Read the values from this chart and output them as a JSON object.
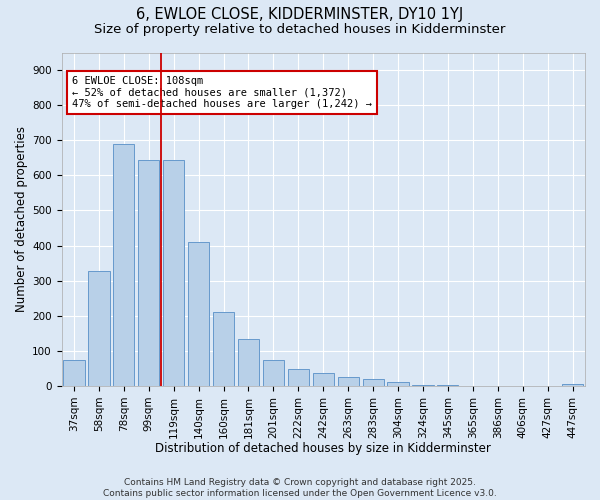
{
  "title": "6, EWLOE CLOSE, KIDDERMINSTER, DY10 1YJ",
  "subtitle": "Size of property relative to detached houses in Kidderminster",
  "xlabel": "Distribution of detached houses by size in Kidderminster",
  "ylabel": "Number of detached properties",
  "categories": [
    "37sqm",
    "58sqm",
    "78sqm",
    "99sqm",
    "119sqm",
    "140sqm",
    "160sqm",
    "181sqm",
    "201sqm",
    "222sqm",
    "242sqm",
    "263sqm",
    "283sqm",
    "304sqm",
    "324sqm",
    "345sqm",
    "365sqm",
    "386sqm",
    "406sqm",
    "427sqm",
    "447sqm"
  ],
  "values": [
    75,
    327,
    690,
    645,
    645,
    410,
    210,
    135,
    73,
    48,
    37,
    25,
    20,
    10,
    4,
    4,
    0,
    0,
    0,
    0,
    7
  ],
  "bar_color": "#b8d0e8",
  "bar_edge_color": "#6699cc",
  "vline_x": 3.5,
  "vline_color": "#cc0000",
  "annotation_text": "6 EWLOE CLOSE: 108sqm\n← 52% of detached houses are smaller (1,372)\n47% of semi-detached houses are larger (1,242) →",
  "annotation_box_color": "#ffffff",
  "annotation_box_edge": "#cc0000",
  "bg_color": "#dce8f5",
  "plot_bg_color": "#dce8f5",
  "ylim": [
    0,
    950
  ],
  "yticks": [
    0,
    100,
    200,
    300,
    400,
    500,
    600,
    700,
    800,
    900
  ],
  "footer": "Contains HM Land Registry data © Crown copyright and database right 2025.\nContains public sector information licensed under the Open Government Licence v3.0.",
  "title_fontsize": 10.5,
  "subtitle_fontsize": 9.5,
  "axis_label_fontsize": 8.5,
  "tick_fontsize": 7.5,
  "annotation_fontsize": 7.5,
  "footer_fontsize": 6.5
}
